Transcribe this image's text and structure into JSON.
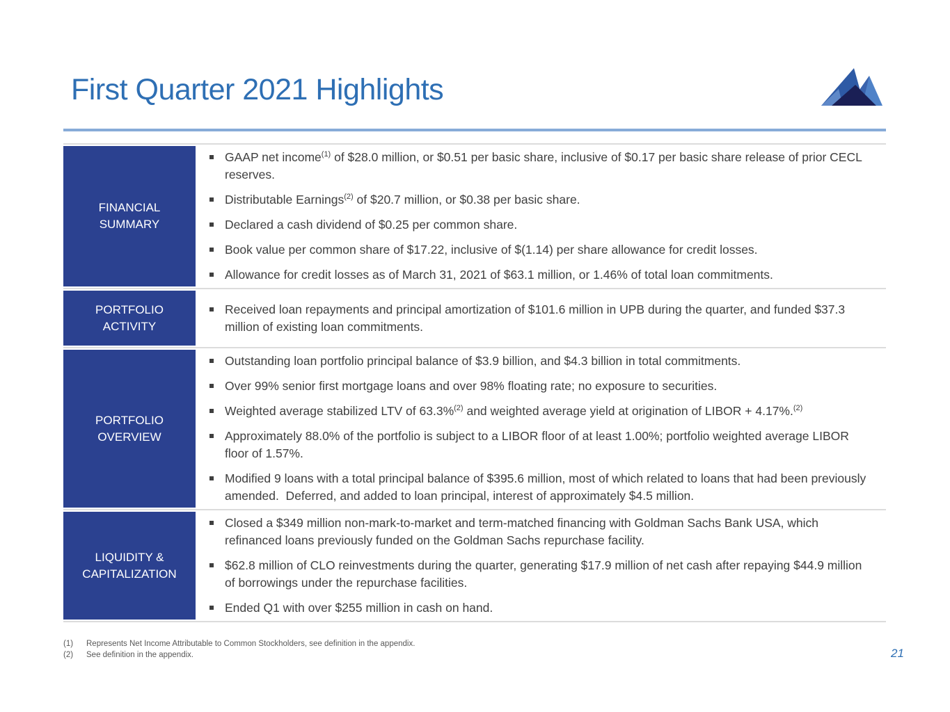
{
  "title": "First Quarter 2021 Highlights",
  "page_number": "21",
  "logo_icon": "mountain-logo",
  "colors": {
    "title": "#2E6FB4",
    "rule": "#87ABD8",
    "cell": "#2B4190",
    "body": "#404040",
    "bullet": "#3F3F3F",
    "footnote": "#595959",
    "divider": "#DCDCDC",
    "pagenum": "#2E6FB4",
    "logo_left_peak": "#2E5AA5",
    "logo_right_peak": "#4F82C8",
    "logo_mid": "#3A63AD",
    "logo_dark": "#1A1F55",
    "logo_light": "#5E88C8"
  },
  "sections": [
    {
      "label_lines": [
        "FINANCIAL",
        "SUMMARY"
      ],
      "bullets": [
        {
          "segments": [
            {
              "t": "GAAP net income"
            },
            {
              "t": "(1)",
              "sup": true
            },
            {
              "t": " of $28.0 million, or $0.51 per basic share, inclusive of $0.17 per basic share release of prior CECL reserves."
            }
          ]
        },
        {
          "segments": [
            {
              "t": "Distributable Earnings"
            },
            {
              "t": "(2)",
              "sup": true
            },
            {
              "t": " of $20.7 million, or $0.38 per basic share."
            }
          ]
        },
        {
          "segments": [
            {
              "t": "Declared a cash dividend of $0.25 per common share."
            }
          ]
        },
        {
          "segments": [
            {
              "t": "Book value per common share of $17.22, inclusive of $(1.14) per share allowance for credit losses."
            }
          ]
        },
        {
          "segments": [
            {
              "t": "Allowance for credit losses as of March 31, 2021 of $63.1 million, or 1.46% of total loan commitments."
            }
          ]
        }
      ]
    },
    {
      "label_lines": [
        "PORTFOLIO",
        "ACTIVITY"
      ],
      "bullets": [
        {
          "segments": [
            {
              "t": "Received loan repayments and principal amortization of $101.6 million in UPB during the quarter, and funded $37.3 million of existing loan commitments."
            }
          ]
        }
      ]
    },
    {
      "label_lines": [
        "PORTFOLIO",
        "OVERVIEW"
      ],
      "bullets": [
        {
          "segments": [
            {
              "t": "Outstanding loan portfolio principal balance of $3.9 billion, and $4.3 billion in total commitments."
            }
          ]
        },
        {
          "segments": [
            {
              "t": "Over 99% senior first mortgage loans and over 98% floating rate; no exposure to securities."
            }
          ]
        },
        {
          "segments": [
            {
              "t": "Weighted average stabilized LTV of 63.3%"
            },
            {
              "t": "(2)",
              "sup": true
            },
            {
              "t": " and weighted average yield at origination of LIBOR + 4.17%."
            },
            {
              "t": "(2)",
              "sup": true
            }
          ]
        },
        {
          "segments": [
            {
              "t": "Approximately 88.0% of the portfolio is subject to a LIBOR floor of at least 1.00%; portfolio weighted average LIBOR floor of 1.57%."
            }
          ]
        },
        {
          "segments": [
            {
              "t": "Modified 9 loans with a total principal balance of $395.6 million, most of which related to loans that had been previously amended.  Deferred, and added to loan principal, interest of approximately $4.5 million."
            }
          ]
        }
      ]
    },
    {
      "label_lines": [
        "LIQUIDITY &",
        "CAPITALIZATION"
      ],
      "bullets": [
        {
          "segments": [
            {
              "t": "Closed a $349 million non-mark-to-market and term-matched financing with Goldman Sachs Bank USA, which refinanced loans previously funded on the Goldman Sachs repurchase facility."
            }
          ]
        },
        {
          "segments": [
            {
              "t": "$62.8 million of CLO reinvestments during the quarter, generating $17.9 million of net cash after repaying $44.9 million of borrowings under the repurchase facilities."
            }
          ]
        },
        {
          "segments": [
            {
              "t": "Ended Q1 with over $255 million in cash on hand."
            }
          ]
        }
      ]
    }
  ],
  "footnotes": [
    {
      "marker": "(1)",
      "text": "Represents Net Income Attributable to Common Stockholders, see definition in the appendix."
    },
    {
      "marker": "(2)",
      "text": "See definition in the appendix."
    }
  ]
}
